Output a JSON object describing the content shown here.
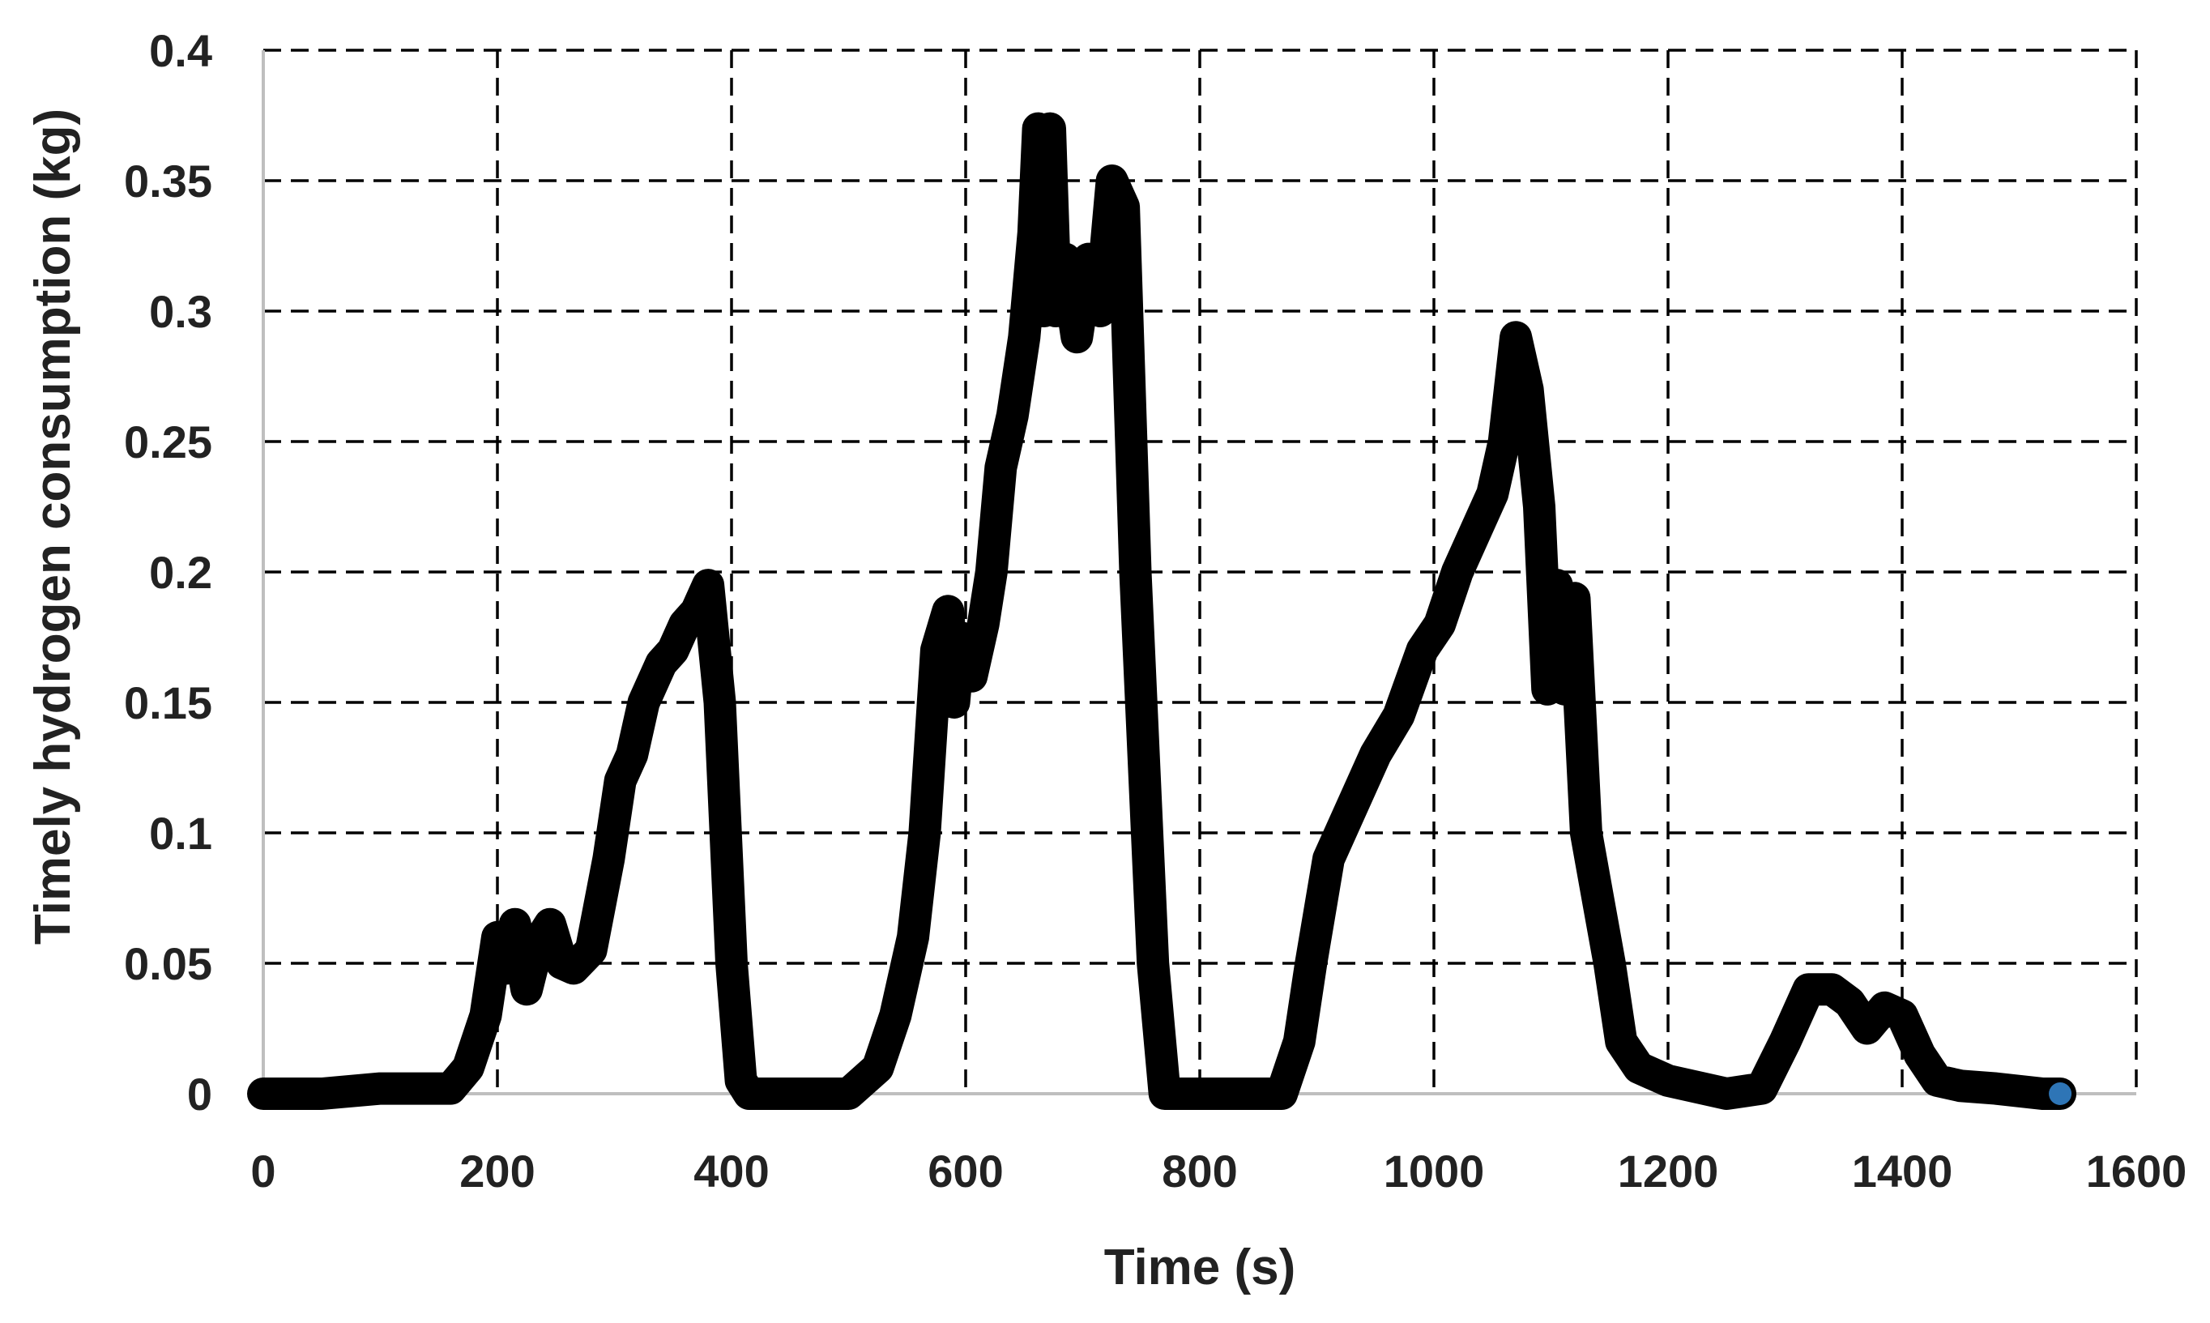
{
  "chart_data": {
    "type": "line",
    "title": "",
    "xlabel": "Time (s)",
    "ylabel": "Timely hydrogen consumption (kg)",
    "xlim": [
      0,
      1600
    ],
    "ylim": [
      0,
      0.4
    ],
    "x_ticks": [
      "0",
      "200",
      "400",
      "600",
      "800",
      "1000",
      "1200",
      "1400",
      "1600"
    ],
    "y_ticks": [
      "0",
      "0.05",
      "0.1",
      "0.15",
      "0.2",
      "0.25",
      "0.3",
      "0.35",
      "0.4"
    ],
    "grid": true,
    "legend": "none",
    "series": [
      {
        "color": "#000000",
        "end_marker_color": "#2e75b6",
        "x": [
          0,
          50,
          100,
          160,
          175,
          190,
          200,
          208,
          215,
          225,
          235,
          245,
          255,
          265,
          280,
          295,
          305,
          315,
          325,
          340,
          350,
          360,
          370,
          380,
          390,
          400,
          408,
          415,
          425,
          440,
          500,
          525,
          540,
          555,
          565,
          575,
          585,
          590,
          595,
          605,
          615,
          622,
          630,
          640,
          650,
          658,
          662,
          667,
          672,
          677,
          685,
          695,
          705,
          715,
          725,
          735,
          745,
          760,
          770,
          790,
          820,
          870,
          885,
          895,
          910,
          930,
          950,
          970,
          990,
          1005,
          1020,
          1035,
          1050,
          1060,
          1070,
          1080,
          1090,
          1097,
          1105,
          1112,
          1120,
          1130,
          1140,
          1150,
          1160,
          1175,
          1200,
          1250,
          1280,
          1300,
          1320,
          1340,
          1355,
          1370,
          1385,
          1400,
          1415,
          1430,
          1450,
          1480,
          1520,
          1535
        ],
        "y": [
          0,
          0,
          0.002,
          0.002,
          0.01,
          0.03,
          0.06,
          0.048,
          0.065,
          0.04,
          0.058,
          0.065,
          0.05,
          0.048,
          0.055,
          0.09,
          0.12,
          0.13,
          0.15,
          0.165,
          0.17,
          0.18,
          0.185,
          0.195,
          0.15,
          0.05,
          0.005,
          0,
          0,
          0,
          0,
          0.01,
          0.03,
          0.06,
          0.1,
          0.17,
          0.185,
          0.15,
          0.175,
          0.16,
          0.18,
          0.2,
          0.24,
          0.26,
          0.29,
          0.33,
          0.37,
          0.3,
          0.37,
          0.3,
          0.32,
          0.29,
          0.32,
          0.3,
          0.35,
          0.34,
          0.2,
          0.05,
          0,
          0,
          0,
          0,
          0.02,
          0.05,
          0.09,
          0.11,
          0.13,
          0.145,
          0.17,
          0.18,
          0.2,
          0.215,
          0.23,
          0.25,
          0.29,
          0.27,
          0.225,
          0.155,
          0.195,
          0.155,
          0.19,
          0.1,
          0.075,
          0.05,
          0.02,
          0.01,
          0.005,
          0,
          0.002,
          0.02,
          0.04,
          0.04,
          0.035,
          0.025,
          0.033,
          0.03,
          0.015,
          0.005,
          0.003,
          0.002,
          0,
          0
        ]
      }
    ]
  }
}
